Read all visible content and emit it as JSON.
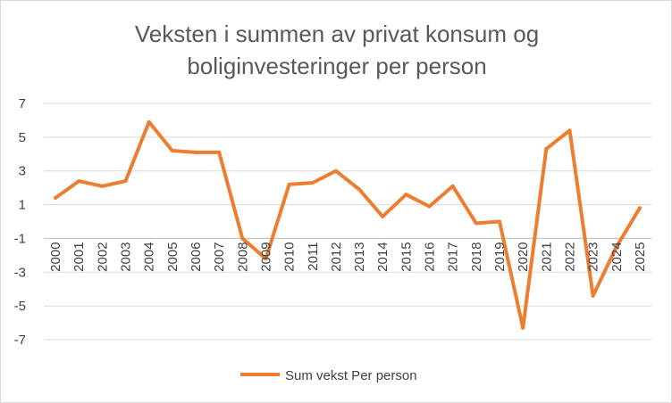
{
  "chart_data": {
    "type": "line",
    "title_line1": "Veksten i summen av privat konsum og",
    "title_line2": "boliginvesteringer per person",
    "xlabel": "",
    "ylabel": "",
    "ylim": [
      -7,
      7
    ],
    "yticks": [
      7,
      5,
      3,
      1,
      -1,
      -3,
      -5,
      -7
    ],
    "y_tick_labels": [
      "7",
      "5",
      "3",
      "1",
      "-1",
      "-3",
      "-5",
      "-7"
    ],
    "categories": [
      "2000",
      "2001",
      "2002",
      "2003",
      "2004",
      "2005",
      "2006",
      "2007",
      "2008",
      "2009",
      "2010",
      "2011",
      "2012",
      "2013",
      "2014",
      "2015",
      "2016",
      "2017",
      "2018",
      "2019",
      "2020",
      "2021",
      "2022",
      "2023",
      "2024",
      "2025"
    ],
    "grid": true,
    "legend_position": "bottom",
    "series": [
      {
        "name": "Sum vekst Per person",
        "color": "#ed7d31",
        "values": [
          1.4,
          2.4,
          2.1,
          2.4,
          5.9,
          4.2,
          4.1,
          4.1,
          -1.0,
          -2.2,
          2.2,
          2.3,
          3.0,
          1.9,
          0.3,
          1.6,
          0.9,
          2.1,
          -0.1,
          0.0,
          -6.3,
          4.3,
          5.4,
          -4.4,
          -1.5,
          0.8
        ]
      }
    ]
  }
}
